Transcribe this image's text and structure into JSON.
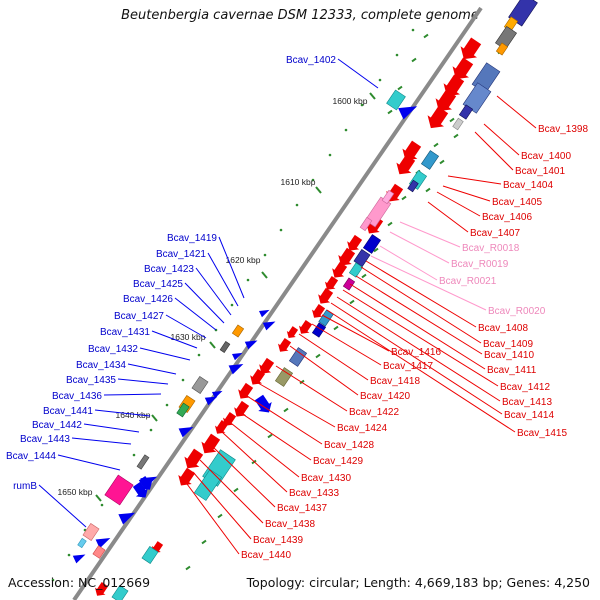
{
  "title": "Beutenbergia cavernae DSM 12333, complete genome",
  "footer": {
    "accession": "Accession: NC_012669",
    "topology": "Topology: circular; Length: 4,669,183 bp; Genes: 4,250"
  },
  "colors": {
    "backbone": "#8a8a8a",
    "forward_gene": "#0000ee",
    "reverse_gene": "#ee0000",
    "rna_gene": "#ff99cc",
    "tick": "#2e8b2e"
  },
  "ruler": [
    "1600 kbp",
    "1610 kbp",
    "1620 kbp",
    "1630 kbp",
    "1640 kbp",
    "1650 kbp"
  ],
  "left_labels": [
    "Bcav_1402",
    "Bcav_1419",
    "Bcav_1421",
    "Bcav_1423",
    "Bcav_1425",
    "Bcav_1426",
    "Bcav_1427",
    "Bcav_1431",
    "Bcav_1432",
    "Bcav_1434",
    "Bcav_1435",
    "Bcav_1436",
    "Bcav_1441",
    "Bcav_1442",
    "Bcav_1443",
    "Bcav_1444",
    "rumB"
  ],
  "right_labels": [
    "Bcav_1398",
    "Bcav_1400",
    "Bcav_1401",
    "Bcav_1404",
    "Bcav_1405",
    "Bcav_1406",
    "Bcav_1407",
    "Bcav_R0018",
    "Bcav_R0019",
    "Bcav_R0021",
    "Bcav_R0020",
    "Bcav_1408",
    "Bcav_1409",
    "Bcav_1410",
    "Bcav_1411",
    "Bcav_1412",
    "Bcav_1413",
    "Bcav_1414",
    "Bcav_1415",
    "Bcav_1416",
    "Bcav_1417",
    "Bcav_1418",
    "Bcav_1420",
    "Bcav_1422",
    "Bcav_1424",
    "Bcav_1428",
    "Bcav_1429",
    "Bcav_1430",
    "Bcav_1433",
    "Bcav_1437",
    "Bcav_1438",
    "Bcav_1439",
    "Bcav_1440"
  ]
}
